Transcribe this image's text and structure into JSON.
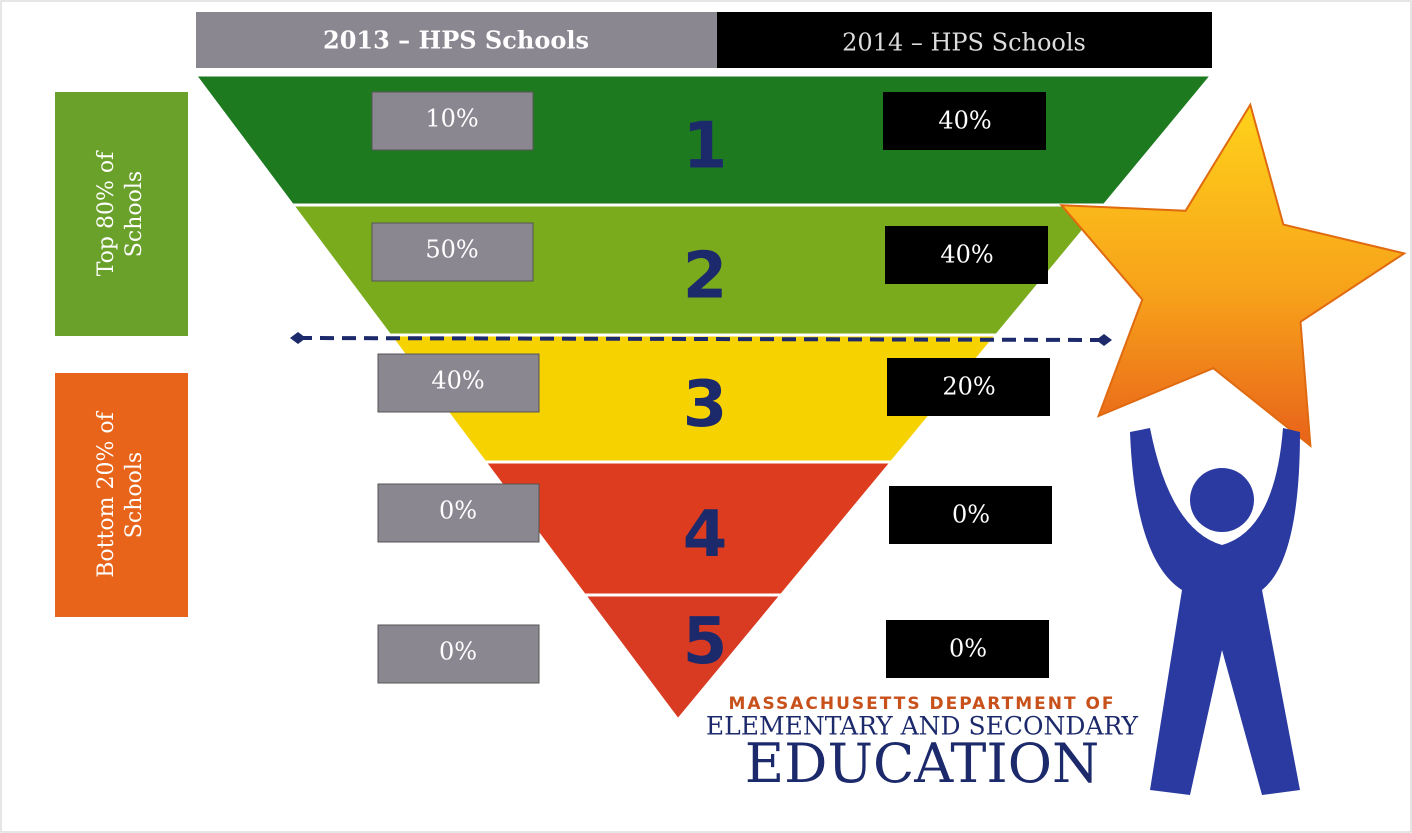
{
  "header": {
    "left": "2013 – HPS Schools",
    "right": "2014 – HPS Schools"
  },
  "side": {
    "top": "Top 80% of Schools",
    "bottom": "Bottom 20% of Schools"
  },
  "levels": [
    {
      "label": "1",
      "y2013": "10%",
      "y2014": "40%"
    },
    {
      "label": "2",
      "y2013": "50%",
      "y2014": "40%"
    },
    {
      "label": "3",
      "y2013": "40%",
      "y2014": "20%"
    },
    {
      "label": "4",
      "y2013": "0%",
      "y2014": "0%"
    },
    {
      "label": "5",
      "y2013": "0%",
      "y2014": "0%"
    }
  ],
  "logo": {
    "line1": "MASSACHUSETTS DEPARTMENT OF",
    "line2": "ELEMENTARY AND SECONDARY",
    "line3": "EDUCATION"
  }
}
